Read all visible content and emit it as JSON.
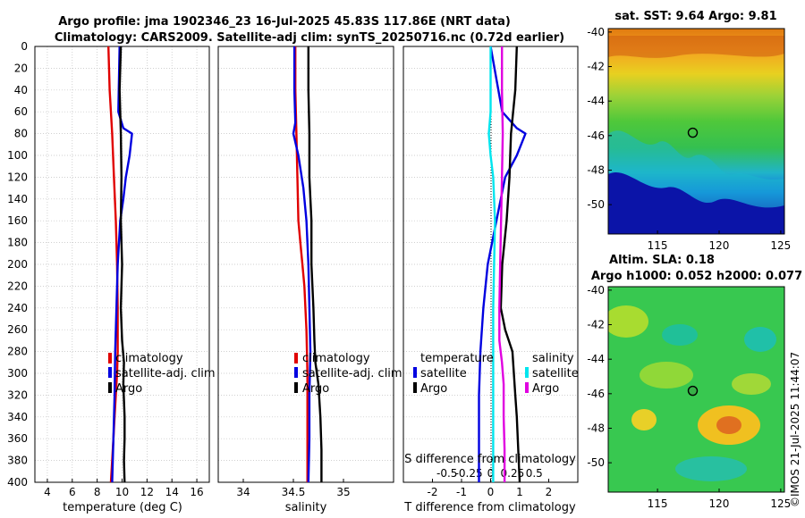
{
  "title_line1": "Argo profile: jma 1902346_23 16-Jul-2025 45.83S 117.86E (NRT data)",
  "title_line2": "Climatology: CARS2009. Satellite-adj clim: synTS_20250716.nc (0.72d earlier)",
  "timestamp": "©IMOS 21-Jul-2025 11:44:07",
  "colors": {
    "climatology": "#e00000",
    "satellite": "#0000e0",
    "argo": "#000000",
    "cyan": "#00e5ee",
    "magenta": "#e000e0"
  },
  "chart_data": [
    {
      "type": "line",
      "xlabel": "temperature (deg C)",
      "xlim": [
        3,
        17
      ],
      "ylim": [
        0,
        400
      ],
      "y_reversed": true,
      "xticks": [
        4,
        6,
        8,
        10,
        12,
        14,
        16
      ],
      "yticks": [
        0,
        20,
        40,
        60,
        80,
        100,
        120,
        140,
        160,
        180,
        200,
        220,
        240,
        260,
        280,
        300,
        320,
        340,
        360,
        380,
        400
      ],
      "legend": {
        "position": "lower-left",
        "items": [
          "climatology",
          "satellite-adj. clim",
          "Argo"
        ]
      },
      "series": [
        {
          "name": "climatology",
          "color": "#e00000",
          "x": [
            8.9,
            9.0,
            9.2,
            9.35,
            9.5,
            9.6,
            9.65,
            9.65,
            9.6,
            9.5,
            9.4,
            9.3,
            9.2,
            9.1
          ],
          "y": [
            0,
            40,
            80,
            120,
            160,
            200,
            240,
            280,
            300,
            320,
            340,
            360,
            380,
            400
          ]
        },
        {
          "name": "satellite-adj. clim",
          "color": "#0000e0",
          "x": [
            9.8,
            9.7,
            10.1,
            10.8,
            10.6,
            10.3,
            10.1,
            9.85,
            9.65,
            9.55,
            9.45,
            9.4,
            9.3,
            9.2
          ],
          "y": [
            0,
            60,
            75,
            80,
            100,
            120,
            140,
            160,
            200,
            240,
            280,
            320,
            360,
            400
          ]
        },
        {
          "name": "Argo",
          "color": "#000000",
          "x": [
            9.9,
            9.8,
            9.9,
            9.95,
            9.9,
            10.0,
            9.9,
            10.0,
            10.15,
            10.1,
            10.2,
            10.2,
            10.15,
            10.2
          ],
          "y": [
            0,
            40,
            80,
            120,
            160,
            200,
            240,
            270,
            290,
            310,
            340,
            360,
            380,
            400
          ]
        }
      ]
    },
    {
      "type": "line",
      "xlabel": "salinity",
      "xlim": [
        33.75,
        35.5
      ],
      "ylim": [
        0,
        400
      ],
      "y_reversed": true,
      "xticks": [
        34,
        34.5,
        35
      ],
      "xtick_labels": [
        "34",
        "34.5",
        "35"
      ],
      "legend": {
        "position": "lower-left",
        "items": [
          "climatology",
          "satellite-adj. clim",
          "Argo"
        ]
      },
      "series": [
        {
          "name": "climatology",
          "color": "#e00000",
          "x": [
            34.52,
            34.52,
            34.53,
            34.54,
            34.55,
            34.57,
            34.59,
            34.61,
            34.63,
            34.64,
            34.64,
            34.64,
            34.64
          ],
          "y": [
            0,
            40,
            80,
            120,
            160,
            180,
            200,
            220,
            260,
            300,
            340,
            380,
            400
          ]
        },
        {
          "name": "satellite-adj. clim",
          "color": "#0000e0",
          "x": [
            34.51,
            34.51,
            34.52,
            34.5,
            34.55,
            34.6,
            34.63,
            34.65,
            34.66,
            34.67,
            34.66,
            34.66,
            34.65
          ],
          "y": [
            0,
            40,
            70,
            80,
            100,
            130,
            160,
            200,
            240,
            280,
            320,
            360,
            400
          ]
        },
        {
          "name": "Argo",
          "color": "#000000",
          "x": [
            34.65,
            34.65,
            34.66,
            34.66,
            34.68,
            34.68,
            34.7,
            34.71,
            34.72,
            34.75,
            34.77,
            34.78,
            34.78
          ],
          "y": [
            0,
            40,
            80,
            120,
            160,
            200,
            240,
            270,
            290,
            310,
            340,
            370,
            400
          ]
        }
      ]
    },
    {
      "type": "line",
      "xlabel": "T difference from climatology",
      "xlabel_top": "S difference from climatology",
      "xlim": [
        -3,
        3
      ],
      "xticks": [
        -2,
        -1,
        0,
        1,
        2
      ],
      "xlim_top": [
        -1,
        1
      ],
      "xticks_top": [
        -0.5,
        -0.25,
        0,
        0.25,
        0.5
      ],
      "xtick_labels_top": [
        "-0.5",
        "-0.25",
        "0",
        "0.25",
        "0.5"
      ],
      "ylim": [
        0,
        400
      ],
      "y_reversed": true,
      "legend_titles": [
        "temperature",
        "salinity"
      ],
      "legend": {
        "position": "lower-center",
        "items": [
          "satellite",
          "Argo",
          "satellite",
          "Argo"
        ]
      },
      "series": [
        {
          "name": "temperature satellite",
          "axis": "T",
          "color": "#0000e0",
          "x": [
            0.0,
            0.4,
            0.9,
            1.2,
            0.9,
            0.5,
            0.2,
            -0.1,
            -0.25,
            -0.35,
            -0.4,
            -0.4,
            -0.4
          ],
          "y": [
            0,
            60,
            75,
            80,
            100,
            120,
            160,
            200,
            240,
            280,
            320,
            360,
            400
          ]
        },
        {
          "name": "temperature Argo",
          "axis": "T",
          "color": "#000000",
          "x": [
            0.9,
            0.85,
            0.7,
            0.65,
            0.55,
            0.4,
            0.35,
            0.5,
            0.75,
            0.8,
            0.85,
            0.9,
            0.95,
            1.0
          ],
          "y": [
            0,
            40,
            80,
            120,
            160,
            200,
            240,
            260,
            280,
            300,
            320,
            340,
            370,
            400
          ]
        },
        {
          "name": "salinity satellite",
          "axis": "S",
          "color": "#00e5ee",
          "x": [
            0.0,
            0.0,
            -0.02,
            0.0,
            0.03,
            0.05,
            0.04,
            0.03,
            0.03,
            0.03,
            0.03
          ],
          "y": [
            0,
            60,
            80,
            100,
            120,
            160,
            200,
            240,
            280,
            320,
            400
          ]
        },
        {
          "name": "salinity Argo",
          "axis": "S",
          "color": "#e000e0",
          "x": [
            0.13,
            0.13,
            0.14,
            0.13,
            0.12,
            0.11,
            0.1,
            0.1,
            0.13,
            0.15,
            0.15,
            0.16,
            0.16
          ],
          "y": [
            0,
            40,
            80,
            120,
            160,
            200,
            240,
            270,
            290,
            310,
            340,
            370,
            400
          ]
        }
      ]
    },
    {
      "type": "heatmap",
      "title": "sat. SST: 9.64 Argo: 9.81",
      "xlim": [
        111,
        125.3
      ],
      "ylim": [
        -51.7,
        -39.8
      ],
      "xticks": [
        115,
        120,
        125
      ],
      "yticks": [
        -40,
        -42,
        -44,
        -46,
        -48,
        -50
      ],
      "marker": {
        "lon": 117.86,
        "lat": -45.83
      }
    },
    {
      "type": "heatmap",
      "title_line1": "Altim. SLA: 0.18",
      "title_line2": "Argo h1000: 0.052 h2000: 0.077",
      "xlim": [
        111,
        125.3
      ],
      "ylim": [
        -51.7,
        -39.8
      ],
      "xticks": [
        115,
        120,
        125
      ],
      "yticks": [
        -40,
        -42,
        -44,
        -46,
        -48,
        -50
      ],
      "marker": {
        "lon": 117.86,
        "lat": -45.83
      }
    }
  ]
}
